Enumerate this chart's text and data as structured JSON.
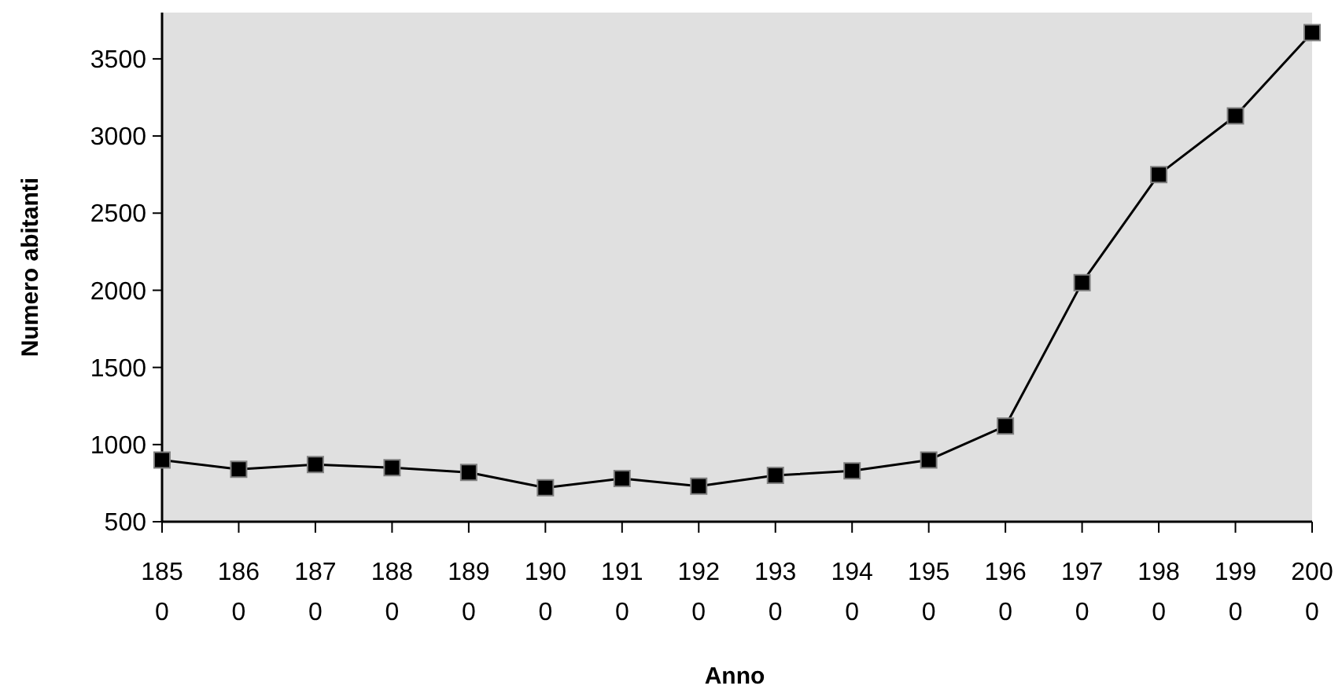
{
  "chart_data": {
    "type": "line",
    "xlabel": "Anno",
    "ylabel": "Numero abitanti",
    "categories": [
      "1850",
      "1860",
      "1870",
      "1880",
      "1890",
      "1900",
      "1910",
      "1920",
      "1930",
      "1940",
      "1950",
      "1960",
      "1970",
      "1980",
      "1990",
      "2000"
    ],
    "series": [
      {
        "color": "#000000",
        "values": [
          900,
          840,
          870,
          850,
          820,
          720,
          780,
          730,
          800,
          830,
          900,
          1120,
          2050,
          2750,
          3130,
          3670
        ]
      }
    ],
    "ylim": [
      500,
      3800
    ],
    "yticks": [
      500,
      1000,
      1500,
      2000,
      2500,
      3000,
      3500
    ],
    "grid": false,
    "marker": "square",
    "line_style": "solid"
  }
}
